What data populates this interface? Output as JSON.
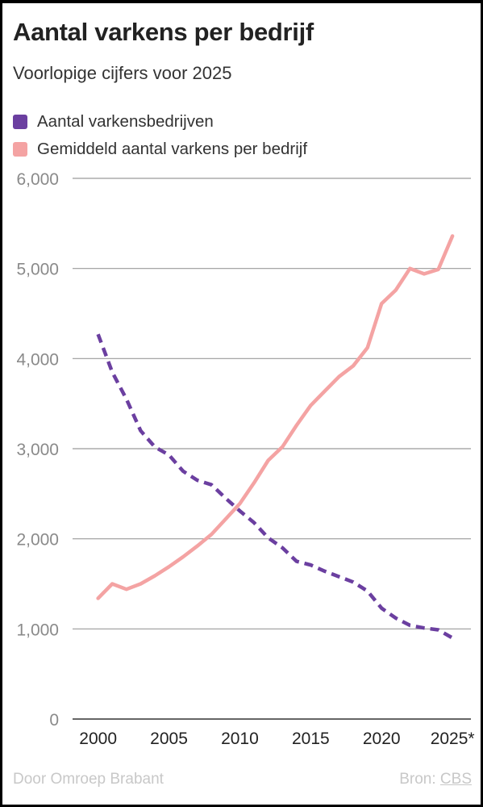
{
  "header": {
    "title": "Aantal varkens per bedrijf",
    "subtitle": "Voorlopige cijfers voor 2025"
  },
  "footer": {
    "byline": "Door Omroep Brabant",
    "source_label": "Bron:",
    "source_name": "CBS"
  },
  "chart_data": {
    "type": "line",
    "title": "Aantal varkens per bedrijf",
    "subtitle": "Voorlopige cijfers voor 2025",
    "xlabel": "",
    "ylabel": "",
    "xlim": [
      1998.2,
      2026.3
    ],
    "ylim": [
      0,
      6000
    ],
    "grid": true,
    "legend_position": "top-left",
    "x_ticks": [
      {
        "value": 2000,
        "label": "2000"
      },
      {
        "value": 2005,
        "label": "2005"
      },
      {
        "value": 2010,
        "label": "2010"
      },
      {
        "value": 2015,
        "label": "2015"
      },
      {
        "value": 2020,
        "label": "2020"
      },
      {
        "value": 2025,
        "label": "2025*"
      }
    ],
    "y_ticks": [
      {
        "value": 0,
        "label": "0"
      },
      {
        "value": 1000,
        "label": "1,000"
      },
      {
        "value": 2000,
        "label": "2,000"
      },
      {
        "value": 3000,
        "label": "3,000"
      },
      {
        "value": 4000,
        "label": "4,000"
      },
      {
        "value": 5000,
        "label": "5,000"
      },
      {
        "value": 6000,
        "label": "6,000"
      }
    ],
    "x": [
      2000,
      2001,
      2002,
      2003,
      2004,
      2005,
      2006,
      2007,
      2008,
      2009,
      2010,
      2011,
      2012,
      2013,
      2014,
      2015,
      2016,
      2017,
      2018,
      2019,
      2020,
      2021,
      2022,
      2023,
      2024,
      2025
    ],
    "series": [
      {
        "name": "Aantal varkensbedrijven",
        "color": "#6b3fa0",
        "dashed": true,
        "values": [
          4270,
          3850,
          3550,
          3200,
          3020,
          2930,
          2750,
          2650,
          2600,
          2450,
          2310,
          2180,
          2010,
          1900,
          1750,
          1710,
          1640,
          1580,
          1520,
          1420,
          1230,
          1120,
          1040,
          1010,
          990,
          900
        ]
      },
      {
        "name": "Gemiddeld aantal varkens per bedrijf",
        "color": "#f4a3a3",
        "dashed": false,
        "values": [
          1340,
          1500,
          1440,
          1500,
          1590,
          1690,
          1800,
          1920,
          2050,
          2220,
          2390,
          2620,
          2870,
          3020,
          3260,
          3480,
          3640,
          3800,
          3920,
          4120,
          4610,
          4760,
          5000,
          4940,
          4990,
          5360
        ]
      }
    ]
  }
}
